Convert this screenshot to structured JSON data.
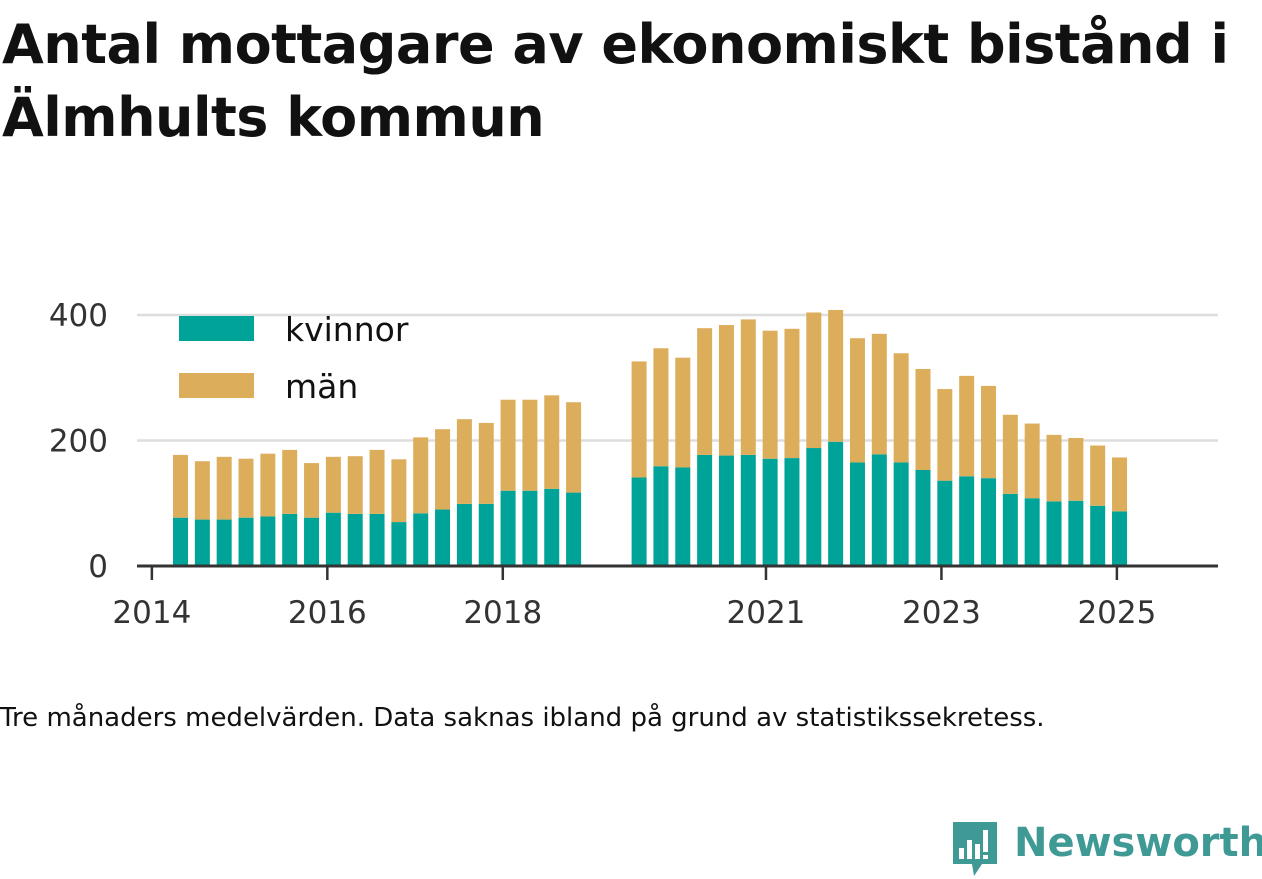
{
  "title": "Antal mottagare av ekonomiskt bistånd i Älmhults kommun",
  "caption": "Tre månaders medelvärden. Data saknas ibland på grund av statistikssekretess.",
  "brand": {
    "name": "Newsworthy",
    "color": "#3f9a95",
    "icon": "bar-chart-speech-bubble-icon"
  },
  "colors": {
    "kvinnor": "#00a398",
    "man": "#dcae5c",
    "grid": "#dddddd",
    "axis": "#333333"
  },
  "chart_data": {
    "type": "bar",
    "stacked": true,
    "title": "Antal mottagare av ekonomiskt bistånd i Älmhults kommun",
    "xlabel": "",
    "ylabel": "",
    "ylim": [
      0,
      400
    ],
    "yticks": [
      0,
      200,
      400
    ],
    "xticks": [
      "2014",
      "2016",
      "2018",
      "2021",
      "2023",
      "2025"
    ],
    "xtick_positions": [
      2014.0,
      2016.0,
      2018.0,
      2021.0,
      2023.0,
      2025.0
    ],
    "grid": true,
    "legend_position": "top-left",
    "x": [
      2014.25,
      2014.5,
      2014.75,
      2015.0,
      2015.25,
      2015.5,
      2015.75,
      2016.0,
      2016.25,
      2016.5,
      2016.75,
      2017.0,
      2017.25,
      2017.5,
      2017.75,
      2018.0,
      2018.25,
      2018.5,
      2018.75,
      2019.5,
      2019.75,
      2020.0,
      2020.25,
      2020.5,
      2020.75,
      2021.0,
      2021.25,
      2021.5,
      2021.75,
      2022.0,
      2022.25,
      2022.5,
      2022.75,
      2023.0,
      2023.25,
      2023.5,
      2023.75,
      2024.0,
      2024.25,
      2024.5,
      2024.75,
      2025.0
    ],
    "series": [
      {
        "name": "kvinnor",
        "color": "#00a398",
        "values": [
          77,
          74,
          74,
          77,
          79,
          83,
          77,
          85,
          83,
          83,
          70,
          84,
          90,
          99,
          99,
          120,
          120,
          123,
          117,
          141,
          159,
          157,
          177,
          176,
          177,
          171,
          172,
          188,
          198,
          165,
          178,
          165,
          153,
          136,
          143,
          140,
          115,
          108,
          103,
          104,
          96,
          87
        ]
      },
      {
        "name": "män",
        "color": "#dcae5c",
        "values": [
          100,
          93,
          100,
          94,
          100,
          102,
          87,
          89,
          92,
          102,
          100,
          121,
          128,
          135,
          129,
          145,
          145,
          149,
          144,
          185,
          188,
          175,
          202,
          208,
          216,
          204,
          206,
          216,
          210,
          198,
          192,
          174,
          161,
          146,
          160,
          147,
          126,
          119,
          106,
          100,
          96,
          86
        ]
      }
    ]
  }
}
